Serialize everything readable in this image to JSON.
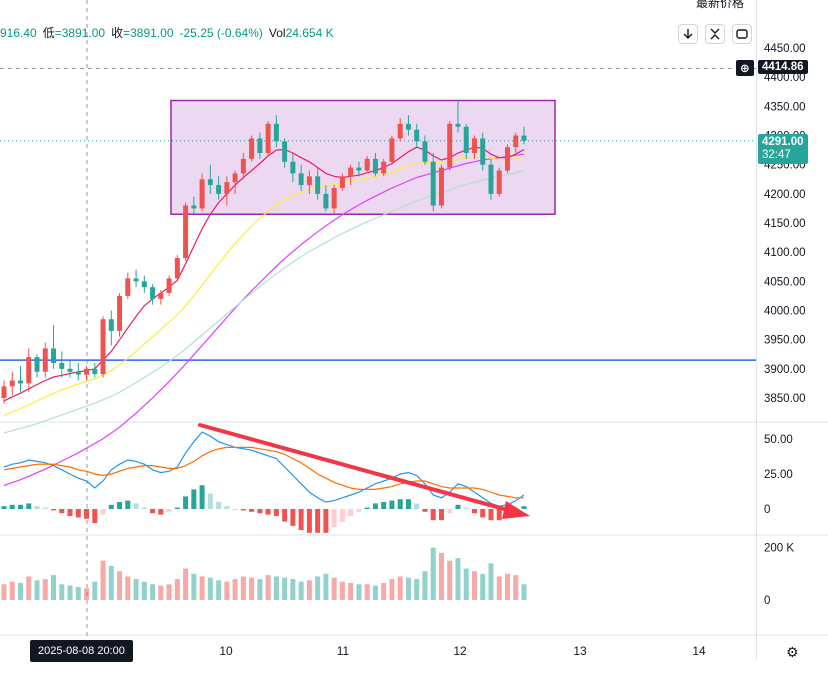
{
  "header": {
    "open_fragment": "916.40",
    "low_label": "低",
    "low_value": "=3891.00",
    "close_label": "收",
    "close_value": "=3891.00",
    "change": "-25.25 (-0.64%)",
    "vol_label": "Vol",
    "vol_value": "24.654 K"
  },
  "toolbar": {
    "top_right_label": "最新价格",
    "down_icon": "arrow-down-icon",
    "collapse_icon": "collapse-icon",
    "reset_icon": "reset-icon"
  },
  "price_scale": {
    "ticks": [
      "4450.00",
      "4400.00",
      "4350.00",
      "4300.00",
      "4250.00",
      "4200.00",
      "4150.00",
      "4100.00",
      "4050.00",
      "4000.00",
      "3950.00",
      "3900.00",
      "3850.00"
    ],
    "tick_values": [
      4450,
      4400,
      4350,
      4300,
      4250,
      4200,
      4150,
      4100,
      4050,
      4000,
      3950,
      3900,
      3850
    ],
    "crosshair_price": "4414.86",
    "last_price": "4291.00",
    "countdown": "32:47"
  },
  "macd_scale": {
    "ticks": [
      "50.00",
      "25.00",
      "0"
    ],
    "tick_values": [
      50,
      25,
      0
    ]
  },
  "volume_scale": {
    "ticks": [
      "200 K",
      "0"
    ],
    "tick_values": [
      200000,
      0
    ]
  },
  "time_axis": {
    "ticks": [
      "10",
      "11",
      "12",
      "13",
      "14"
    ],
    "crosshair_label": "2025-08-08   20:00"
  },
  "colors": {
    "up": "#ef5350",
    "down": "#26a69a",
    "ma_fast": "#e91e63",
    "ma_mid": "#ffeb3b",
    "ma_slow": "#b2dfdb",
    "ma_long": "#e040fb",
    "horizontal_line": "#2962ff",
    "range_box": "#9c27b0",
    "macd_line": "#2196f3",
    "signal_line": "#ff6d00",
    "arrow": "#f23645"
  },
  "chart_data": {
    "type": "candlestick",
    "ylim": [
      3830,
      4460
    ],
    "reference_level": 3915,
    "range_box": {
      "top": 4360,
      "bottom": 4165
    },
    "candles": [
      [
        3850,
        3880,
        3840,
        3870
      ],
      [
        3870,
        3895,
        3855,
        3880
      ],
      [
        3880,
        3905,
        3860,
        3875
      ],
      [
        3875,
        3935,
        3860,
        3920
      ],
      [
        3920,
        3925,
        3885,
        3895
      ],
      [
        3895,
        3945,
        3885,
        3935
      ],
      [
        3935,
        3975,
        3900,
        3910
      ],
      [
        3910,
        3930,
        3885,
        3900
      ],
      [
        3900,
        3915,
        3885,
        3895
      ],
      [
        3895,
        3910,
        3880,
        3890
      ],
      [
        3890,
        3905,
        3880,
        3900
      ],
      [
        3900,
        3910,
        3885,
        3891
      ],
      [
        3891,
        3990,
        3885,
        3985
      ],
      [
        3985,
        4000,
        3940,
        3965
      ],
      [
        3965,
        4030,
        3955,
        4025
      ],
      [
        4025,
        4065,
        4020,
        4055
      ],
      [
        4055,
        4070,
        4040,
        4050
      ],
      [
        4050,
        4060,
        4030,
        4040
      ],
      [
        4040,
        4045,
        4010,
        4020
      ],
      [
        4020,
        4035,
        4010,
        4030
      ],
      [
        4030,
        4060,
        4025,
        4055
      ],
      [
        4055,
        4095,
        4050,
        4090
      ],
      [
        4090,
        4185,
        4085,
        4180
      ],
      [
        4180,
        4195,
        4165,
        4175
      ],
      [
        4175,
        4235,
        4170,
        4225
      ],
      [
        4225,
        4250,
        4200,
        4215
      ],
      [
        4215,
        4230,
        4190,
        4200
      ],
      [
        4200,
        4230,
        4180,
        4220
      ],
      [
        4220,
        4240,
        4200,
        4235
      ],
      [
        4235,
        4270,
        4225,
        4260
      ],
      [
        4260,
        4300,
        4255,
        4295
      ],
      [
        4295,
        4305,
        4260,
        4270
      ],
      [
        4270,
        4325,
        4265,
        4320
      ],
      [
        4320,
        4335,
        4280,
        4290
      ],
      [
        4290,
        4295,
        4245,
        4255
      ],
      [
        4255,
        4270,
        4220,
        4235
      ],
      [
        4235,
        4250,
        4205,
        4215
      ],
      [
        4215,
        4240,
        4200,
        4230
      ],
      [
        4230,
        4245,
        4190,
        4200
      ],
      [
        4200,
        4215,
        4170,
        4175
      ],
      [
        4175,
        4215,
        4165,
        4210
      ],
      [
        4210,
        4235,
        4205,
        4230
      ],
      [
        4230,
        4250,
        4215,
        4245
      ],
      [
        4245,
        4255,
        4230,
        4240
      ],
      [
        4240,
        4265,
        4235,
        4260
      ],
      [
        4260,
        4270,
        4230,
        4235
      ],
      [
        4235,
        4260,
        4230,
        4255
      ],
      [
        4255,
        4300,
        4250,
        4295
      ],
      [
        4295,
        4330,
        4290,
        4320
      ],
      [
        4320,
        4335,
        4300,
        4310
      ],
      [
        4310,
        4320,
        4280,
        4290
      ],
      [
        4290,
        4300,
        4250,
        4255
      ],
      [
        4255,
        4270,
        4170,
        4180
      ],
      [
        4180,
        4250,
        4175,
        4245
      ],
      [
        4245,
        4325,
        4240,
        4320
      ],
      [
        4320,
        4360,
        4305,
        4315
      ],
      [
        4315,
        4320,
        4260,
        4270
      ],
      [
        4270,
        4300,
        4260,
        4295
      ],
      [
        4295,
        4305,
        4240,
        4250
      ],
      [
        4250,
        4260,
        4190,
        4200
      ],
      [
        4200,
        4245,
        4195,
        4240
      ],
      [
        4240,
        4285,
        4235,
        4280
      ],
      [
        4280,
        4305,
        4270,
        4300
      ],
      [
        4300,
        4315,
        4285,
        4291
      ]
    ],
    "ma_fast": [
      3845,
      3852,
      3858,
      3866,
      3873,
      3880,
      3886,
      3889,
      3892,
      3895,
      3897,
      3900,
      3915,
      3930,
      3950,
      3970,
      3990,
      4008,
      4020,
      4030,
      4040,
      4052,
      4080,
      4110,
      4140,
      4165,
      4185,
      4200,
      4215,
      4228,
      4240,
      4252,
      4265,
      4275,
      4276,
      4270,
      4262,
      4255,
      4245,
      4235,
      4230,
      4228,
      4230,
      4232,
      4236,
      4240,
      4245,
      4252,
      4262,
      4272,
      4280,
      4275,
      4265,
      4258,
      4262,
      4270,
      4275,
      4280,
      4278,
      4268,
      4262,
      4262,
      4268,
      4276
    ],
    "ma_mid": [
      3820,
      3826,
      3832,
      3838,
      3845,
      3852,
      3858,
      3864,
      3869,
      3874,
      3879,
      3883,
      3890,
      3897,
      3907,
      3918,
      3930,
      3943,
      3955,
      3968,
      3980,
      3993,
      4008,
      4025,
      4043,
      4062,
      4080,
      4098,
      4115,
      4130,
      4145,
      4158,
      4170,
      4182,
      4190,
      4197,
      4202,
      4207,
      4210,
      4213,
      4216,
      4218,
      4221,
      4224,
      4227,
      4230,
      4233,
      4237,
      4242,
      4247,
      4252,
      4254,
      4254,
      4254,
      4256,
      4259,
      4261,
      4263,
      4263,
      4261,
      4259,
      4258,
      4260,
      4263
    ],
    "ma_slow": [
      3790,
      3794,
      3798,
      3802,
      3806,
      3811,
      3816,
      3821,
      3826,
      3831,
      3836,
      3841,
      3847,
      3853,
      3860,
      3868,
      3876,
      3885,
      3894,
      3903,
      3913,
      3923,
      3934,
      3946,
      3958,
      3970,
      3982,
      3994,
      4006,
      4018,
      4030,
      4041,
      4052,
      4063,
      4073,
      4083,
      4092,
      4101,
      4109,
      4117,
      4125,
      4132,
      4139,
      4146,
      4152,
      4158,
      4164,
      4170,
      4176,
      4182,
      4188,
      4193,
      4198,
      4202,
      4207,
      4212,
      4216,
      4220,
      4224,
      4227,
      4230,
      4233,
      4236,
      4240
    ],
    "ma_long": [
      3700,
      3705,
      3710,
      3716,
      3722,
      3728,
      3735,
      3742,
      3749,
      3756,
      3764,
      3772,
      3780,
      3790,
      3800,
      3812,
      3824,
      3837,
      3850,
      3864,
      3878,
      3893,
      3908,
      3924,
      3940,
      3956,
      3972,
      3988,
      4004,
      4019,
      4034,
      4048,
      4062,
      4076,
      4089,
      4101,
      4113,
      4124,
      4135,
      4145,
      4155,
      4164,
      4173,
      4181,
      4189,
      4196,
      4203,
      4210,
      4216,
      4222,
      4228,
      4232,
      4236,
      4240,
      4244,
      4248,
      4252,
      4255,
      4258,
      4260,
      4262,
      4264,
      4266,
      4268
    ],
    "macd": {
      "macd_line": [
        30,
        32,
        33,
        35,
        34,
        33,
        31,
        28,
        25,
        22,
        20,
        15,
        20,
        28,
        32,
        35,
        34,
        32,
        28,
        26,
        27,
        30,
        40,
        48,
        55,
        52,
        48,
        46,
        44,
        43,
        42,
        40,
        38,
        36,
        30,
        24,
        18,
        12,
        8,
        5,
        6,
        8,
        10,
        12,
        15,
        18,
        20,
        22,
        25,
        26,
        24,
        18,
        10,
        8,
        12,
        18,
        16,
        12,
        8,
        4,
        2,
        3,
        6,
        10
      ],
      "signal_line": [
        28,
        29,
        30,
        31,
        32,
        32,
        32,
        31,
        30,
        28,
        27,
        25,
        24,
        25,
        27,
        29,
        30,
        31,
        31,
        30,
        29,
        29,
        31,
        34,
        38,
        41,
        43,
        44,
        44,
        44,
        44,
        43,
        42,
        41,
        39,
        36,
        33,
        29,
        25,
        22,
        19,
        17,
        15,
        14,
        14,
        14,
        15,
        16,
        18,
        19,
        20,
        20,
        18,
        16,
        15,
        15,
        15,
        15,
        14,
        12,
        10,
        9,
        8,
        8
      ],
      "histogram": [
        2,
        3,
        3,
        4,
        2,
        1,
        -1,
        -3,
        -5,
        -6,
        -7,
        -10,
        -4,
        3,
        5,
        6,
        4,
        1,
        -3,
        -4,
        -2,
        1,
        9,
        14,
        17,
        11,
        5,
        2,
        0,
        -1,
        -2,
        -3,
        -4,
        -5,
        -9,
        -12,
        -15,
        -17,
        -17,
        -17,
        -13,
        -9,
        -5,
        -2,
        1,
        4,
        5,
        6,
        7,
        7,
        4,
        -2,
        -8,
        -8,
        -3,
        3,
        1,
        -3,
        -6,
        -8,
        -8,
        -6,
        -2,
        2
      ]
    },
    "volume": [
      60000,
      70000,
      65000,
      90000,
      75000,
      80000,
      95000,
      60000,
      55000,
      50000,
      45000,
      70000,
      150000,
      130000,
      110000,
      90000,
      80000,
      70000,
      60000,
      55000,
      60000,
      80000,
      120000,
      100000,
      90000,
      85000,
      75000,
      70000,
      80000,
      90000,
      85000,
      80000,
      95000,
      90000,
      85000,
      80000,
      70000,
      75000,
      90000,
      100000,
      85000,
      70000,
      65000,
      60000,
      60000,
      55000,
      65000,
      80000,
      90000,
      85000,
      80000,
      110000,
      200000,
      180000,
      150000,
      160000,
      120000,
      110000,
      100000,
      140000,
      90000,
      100000,
      95000,
      60000
    ]
  }
}
